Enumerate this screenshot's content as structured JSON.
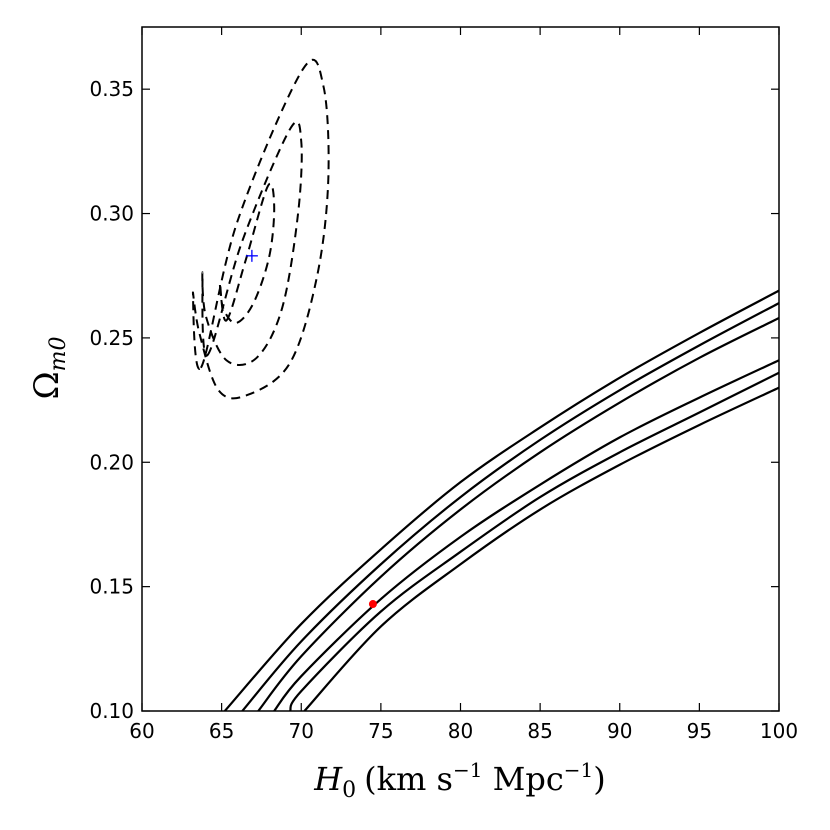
{
  "chart_data": {
    "type": "contour",
    "title": "",
    "xlabel": {
      "symbol": "H",
      "subscript": "0",
      "units_text": "(km s",
      "exp1": "−1",
      "units_mid": " Mpc",
      "exp2": "−1",
      "units_end": ")"
    },
    "ylabel": {
      "symbol": "Ω",
      "subscript": "m0"
    },
    "xlim": [
      60,
      100
    ],
    "ylim": [
      0.1,
      0.375
    ],
    "xticks": [
      60,
      65,
      70,
      75,
      80,
      85,
      90,
      95,
      100
    ],
    "xtick_labels": [
      "60",
      "65",
      "70",
      "75",
      "80",
      "85",
      "90",
      "95",
      "100"
    ],
    "yticks": [
      0.1,
      0.15,
      0.2,
      0.25,
      0.3,
      0.35
    ],
    "ytick_labels": [
      "0.10",
      "0.15",
      "0.20",
      "0.25",
      "0.30",
      "0.35"
    ],
    "dashed_contours": {
      "center": [
        66.9,
        0.283
      ],
      "levels": [
        {
          "name": "1-sigma",
          "x": [
            65.3,
            66.5,
            67.9,
            68.3,
            68.0,
            67.0,
            65.9,
            65.1,
            64.9,
            65.3
          ],
          "y": [
            0.257,
            0.281,
            0.311,
            0.303,
            0.283,
            0.264,
            0.256,
            0.262,
            0.272,
            0.257
          ]
        },
        {
          "name": "2-sigma",
          "x": [
            64.1,
            66.3,
            69.3,
            70.0,
            69.8,
            68.8,
            67.2,
            65.3,
            64.0,
            63.8,
            64.1
          ],
          "y": [
            0.243,
            0.289,
            0.334,
            0.329,
            0.3,
            0.262,
            0.242,
            0.241,
            0.259,
            0.276,
            0.243
          ]
        },
        {
          "name": "3-sigma",
          "x": [
            63.7,
            66.0,
            70.1,
            71.4,
            71.7,
            71.0,
            69.3,
            66.6,
            64.8,
            63.6,
            63.2,
            63.7
          ],
          "y": [
            0.238,
            0.297,
            0.358,
            0.351,
            0.314,
            0.275,
            0.24,
            0.227,
            0.229,
            0.252,
            0.268,
            0.238
          ]
        }
      ]
    },
    "solid_curves": [
      {
        "name": "upper-outer",
        "x": [
          65.2,
          70,
          75,
          80,
          85,
          90,
          95,
          100
        ],
        "y": [
          0.1,
          0.135,
          0.165,
          0.192,
          0.214,
          0.234,
          0.252,
          0.269
        ]
      },
      {
        "name": "upper-middle",
        "x": [
          66.3,
          70,
          75,
          80,
          85,
          90,
          95,
          100
        ],
        "y": [
          0.1,
          0.128,
          0.159,
          0.186,
          0.209,
          0.229,
          0.247,
          0.264
        ]
      },
      {
        "name": "upper-inner",
        "x": [
          67.3,
          70,
          75,
          80,
          85,
          90,
          95,
          100
        ],
        "y": [
          0.1,
          0.122,
          0.154,
          0.181,
          0.204,
          0.224,
          0.242,
          0.258
        ]
      },
      {
        "name": "lower-inner",
        "x": [
          68.3,
          70,
          75,
          80,
          85,
          90,
          95,
          100
        ],
        "y": [
          0.1,
          0.114,
          0.145,
          0.17,
          0.191,
          0.21,
          0.226,
          0.241
        ]
      },
      {
        "name": "lower-middle",
        "x": [
          69.3,
          70,
          75,
          80,
          85,
          90,
          95,
          100
        ],
        "y": [
          0.1,
          0.108,
          0.14,
          0.164,
          0.186,
          0.204,
          0.22,
          0.236
        ]
      },
      {
        "name": "lower-outer",
        "x": [
          70.2,
          75,
          80,
          85,
          90,
          95,
          100
        ],
        "y": [
          0.1,
          0.134,
          0.159,
          0.181,
          0.199,
          0.215,
          0.23
        ]
      }
    ],
    "markers": [
      {
        "name": "best-fit-plus",
        "shape": "plus",
        "color": "#0000ff",
        "x": 66.9,
        "y": 0.283
      },
      {
        "name": "red-point",
        "shape": "dot",
        "color": "#ff0000",
        "x": 74.5,
        "y": 0.143
      }
    ],
    "colors": {
      "axes": "#000000",
      "curves": "#000000",
      "background": "#ffffff"
    }
  }
}
